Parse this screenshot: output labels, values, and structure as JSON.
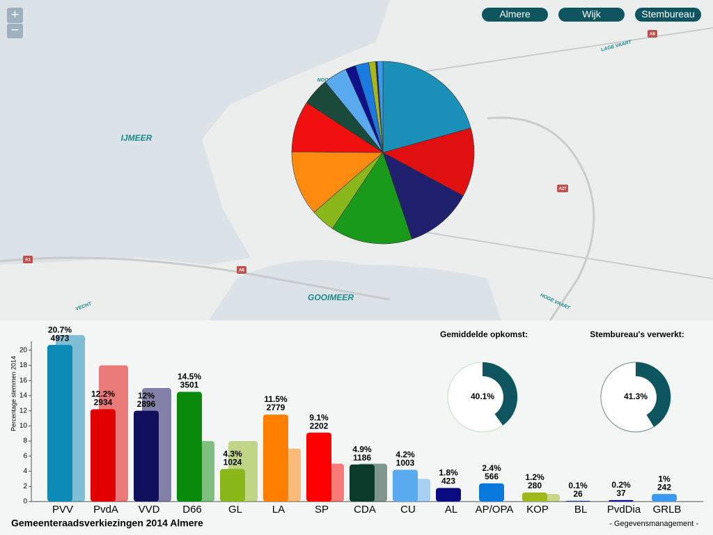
{
  "buttons": [
    "Almere",
    "Wijk",
    "Stembureau"
  ],
  "zoom": [
    "+",
    "−"
  ],
  "map": {
    "labels": [
      "IJMEER",
      "GOOIMEER",
      "NOORDERPLASSEN",
      "LAGE VAART",
      "HOGE VAART",
      "VECHT",
      "A6",
      "A6",
      "A1",
      "A27"
    ]
  },
  "credit": "- Gegevensmanagement -",
  "chart_data": [
    {
      "type": "bar",
      "title": "Gemeenteraadsverkiezingen 2014 Almere",
      "y_label": "Percentage stemmen 2014",
      "categories": [
        "PVV",
        "PvdA",
        "VVD",
        "D66",
        "GL",
        "LA",
        "SP",
        "CDA",
        "CU",
        "AL",
        "AP/OPA",
        "KOP",
        "BL",
        "PvdDia",
        "GRLB"
      ],
      "values": [
        20.7,
        12.2,
        12,
        14.5,
        4.3,
        11.5,
        9.1,
        4.9,
        4.2,
        1.8,
        2.4,
        1.2,
        0.1,
        0.2,
        1
      ],
      "value_labels": [
        "20.7%",
        "12.2%",
        "12%",
        "14.5%",
        "4.3%",
        "11.5%",
        "9.1%",
        "4.9%",
        "4.2%",
        "1.8%",
        "2.4%",
        "1.2%",
        "0.1%",
        "0.2%",
        "1%"
      ],
      "votes": [
        4973,
        2934,
        2896,
        3501,
        1024,
        2779,
        2202,
        1186,
        1003,
        423,
        566,
        280,
        26,
        37,
        242
      ],
      "previous_values": [
        22,
        18,
        15,
        8,
        8,
        7,
        5,
        5,
        3,
        null,
        null,
        1,
        null,
        null,
        null
      ],
      "colors": [
        "#0a8ab5",
        "#e00000",
        "#10105e",
        "#0a8a0a",
        "#8ab81a",
        "#ff8000",
        "#ff0000",
        "#0a3a2a",
        "#5aaaf0",
        "#0a0a80",
        "#0a78dc",
        "#a0b81a",
        "#1a3aa0",
        "#1010a0",
        "#3a9af0"
      ],
      "ylim": [
        0,
        22
      ],
      "yticks": [
        0,
        2,
        4,
        6,
        8,
        10,
        12,
        14,
        16,
        18,
        20
      ]
    },
    {
      "type": "pie",
      "values": [
        20.7,
        12.2,
        12,
        14.5,
        4.3,
        11.5,
        9.1,
        4.9,
        4.2,
        1.8,
        2.4,
        1.2,
        0.1,
        0.2,
        1
      ],
      "colors": [
        "#1a8fb8",
        "#e01010",
        "#20206e",
        "#1a9a1a",
        "#8ab81a",
        "#ff8a10",
        "#f01010",
        "#1a4a3a",
        "#5aaaf0",
        "#10108a",
        "#1a7ae0",
        "#a8b81a",
        "#1a3aa0",
        "#1010a0",
        "#3a9af0"
      ]
    },
    {
      "type": "donut",
      "title": "Gemiddelde opkomst:",
      "value": 40.1,
      "value_label": "40.1%",
      "color": "#0e5560"
    },
    {
      "type": "donut",
      "title": "Stembureau's verwerkt:",
      "value": 41.3,
      "value_label": "41.3%",
      "color": "#0e5560"
    }
  ]
}
